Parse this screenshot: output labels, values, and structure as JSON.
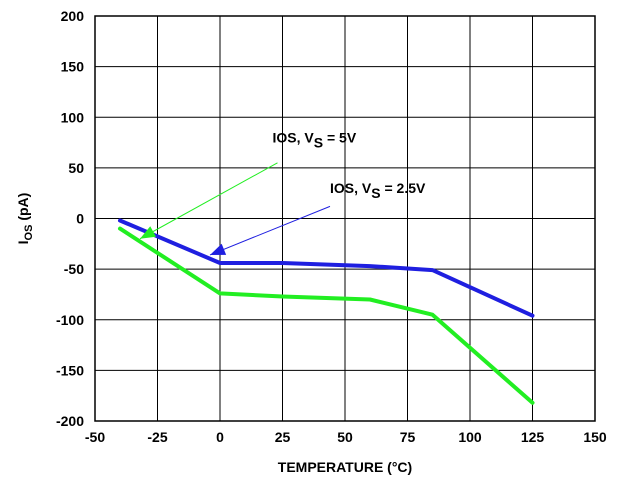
{
  "chart_data": {
    "type": "line",
    "title": "",
    "xlabel": "TEMPERATURE (°C)",
    "ylabel": {
      "main": "I",
      "sub": "OS",
      "rest": " (pA)"
    },
    "xlim": [
      -50,
      150
    ],
    "ylim": [
      -200,
      200
    ],
    "x_ticks": [
      -50,
      -25,
      0,
      25,
      50,
      75,
      100,
      125,
      150
    ],
    "y_ticks": [
      -200,
      -150,
      -100,
      -50,
      0,
      50,
      100,
      150,
      200
    ],
    "grid": true,
    "series": [
      {
        "color": "#1f1fe0",
        "points": [
          [
            -40,
            -2
          ],
          [
            0,
            -44
          ],
          [
            25,
            -44
          ],
          [
            60,
            -47
          ],
          [
            85,
            -51
          ],
          [
            125,
            -96
          ]
        ]
      },
      {
        "color": "#22ee22",
        "points": [
          [
            -40,
            -10
          ],
          [
            0,
            -74
          ],
          [
            25,
            -77
          ],
          [
            60,
            -80
          ],
          [
            85,
            -95
          ],
          [
            125,
            -182
          ]
        ]
      }
    ],
    "annotations": [
      {
        "name": "annotation-vs-5v",
        "text_main": "IOS, V",
        "text_sub": "S",
        "text_rest": " = 5V",
        "label_at": [
          21,
          75
        ],
        "arrow_from": [
          23,
          55
        ],
        "arrow_to": [
          -32,
          -20
        ],
        "color": "#22ee22"
      },
      {
        "name": "annotation-vs-2-5v",
        "text_main": "IOS, V",
        "text_sub": "S",
        "text_rest": " = 2.5V",
        "label_at": [
          44,
          25
        ],
        "arrow_from": [
          44,
          12
        ],
        "arrow_to": [
          -4,
          -36
        ],
        "color": "#1f1fe0"
      }
    ]
  }
}
